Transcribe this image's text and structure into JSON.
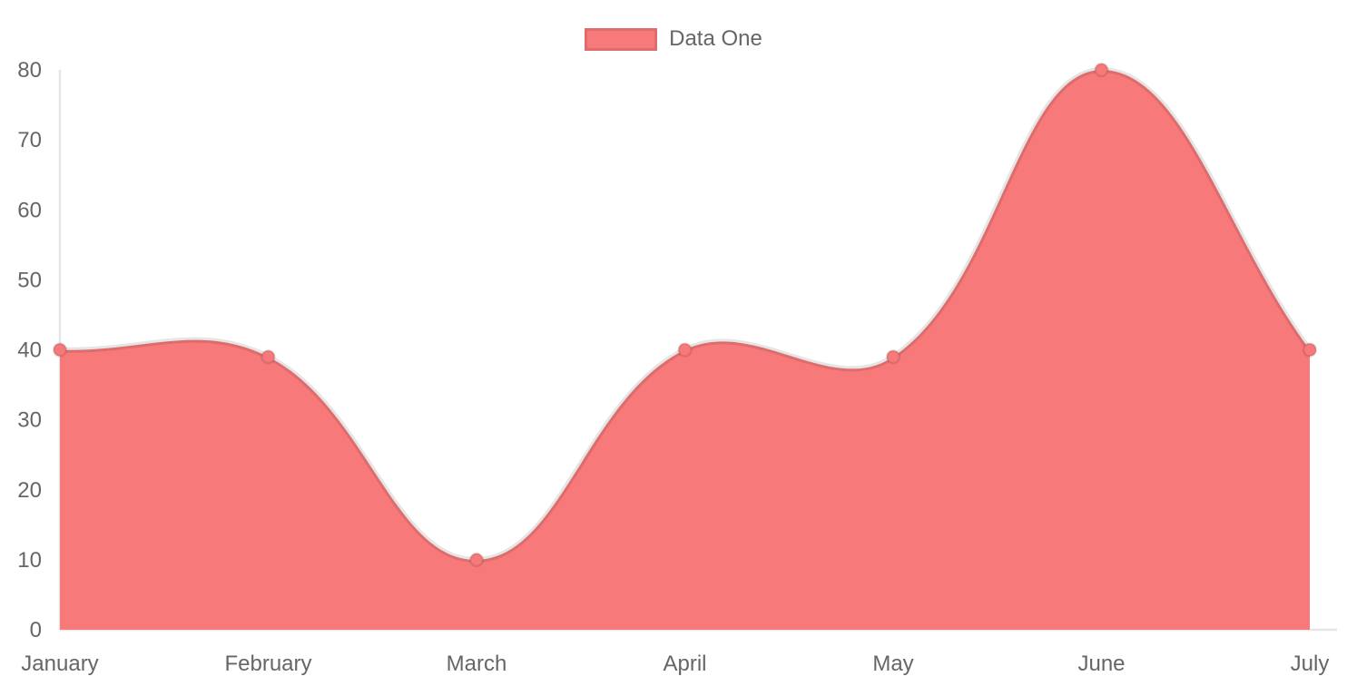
{
  "chart_data": {
    "type": "area",
    "title": "",
    "categories": [
      "January",
      "February",
      "March",
      "April",
      "May",
      "June",
      "July"
    ],
    "series": [
      {
        "name": "Data One",
        "values": [
          40,
          39,
          10,
          40,
          39,
          80,
          40
        ]
      }
    ],
    "ylim": [
      0,
      80
    ],
    "yticks": [
      0,
      10,
      20,
      30,
      40,
      50,
      60,
      70,
      80
    ],
    "grid": false,
    "legend_position": "top",
    "line_tension": 0.4,
    "colors": {
      "area_fill": "#f87979",
      "line_stroke": "rgba(0,0,0,0.1)",
      "point_fill": "#f87979",
      "point_border": "rgba(0,0,0,0.1)",
      "axis_line": "#e6e6e6",
      "tick_text": "#666666",
      "background": "#ffffff"
    }
  }
}
